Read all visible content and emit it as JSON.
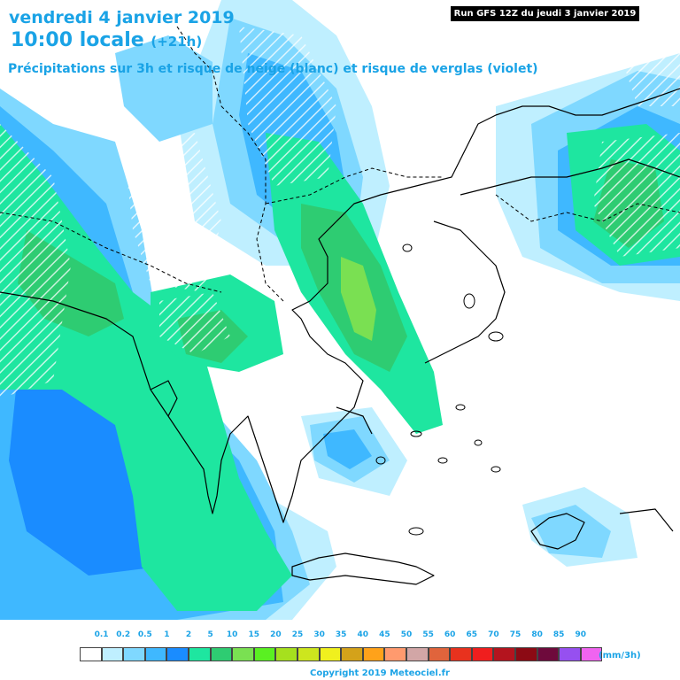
{
  "header": {
    "date": "vendredi 4 janvier 2019",
    "time": "10:00 locale",
    "offset": "(+21h)",
    "description": "Précipitations sur 3h et risque de neige (blanc) et risque de verglas (violet)",
    "run": "Run GFS 12Z du jeudi 3 janvier 2019"
  },
  "legend": {
    "labels": [
      "0.1",
      "0.2",
      "0.5",
      "1",
      "2",
      "5",
      "10",
      "15",
      "20",
      "25",
      "30",
      "35",
      "40",
      "45",
      "50",
      "55",
      "60",
      "65",
      "70",
      "75",
      "80",
      "85",
      "90"
    ],
    "colors": [
      "#ffffff",
      "#bfefff",
      "#7fd8ff",
      "#3fb8ff",
      "#1a8cff",
      "#1ee6a0",
      "#2ecc72",
      "#7ae052",
      "#5af022",
      "#a6e01e",
      "#cde61e",
      "#f0f01e",
      "#d4a21a",
      "#ffa21a",
      "#ff9a6e",
      "#d2a6a6",
      "#e0643c",
      "#e8321e",
      "#f01e1e",
      "#b4141e",
      "#8c0a14",
      "#6e0a3c",
      "#9650f0",
      "#f064f0"
    ],
    "unit": "(mm/3h)"
  },
  "footer": {
    "copyright": "Copyright 2019 Meteociel.fr"
  },
  "map": {
    "colors": {
      "land_bg": "#ffffff",
      "coast": "#000000",
      "light_blue": "#bfefff",
      "mid_blue": "#7fd8ff",
      "blue": "#3fb8ff",
      "dark_blue": "#1a8cff",
      "aqua_green": "#1ee6a0",
      "green": "#2ecc72",
      "lime": "#7ae052"
    }
  }
}
